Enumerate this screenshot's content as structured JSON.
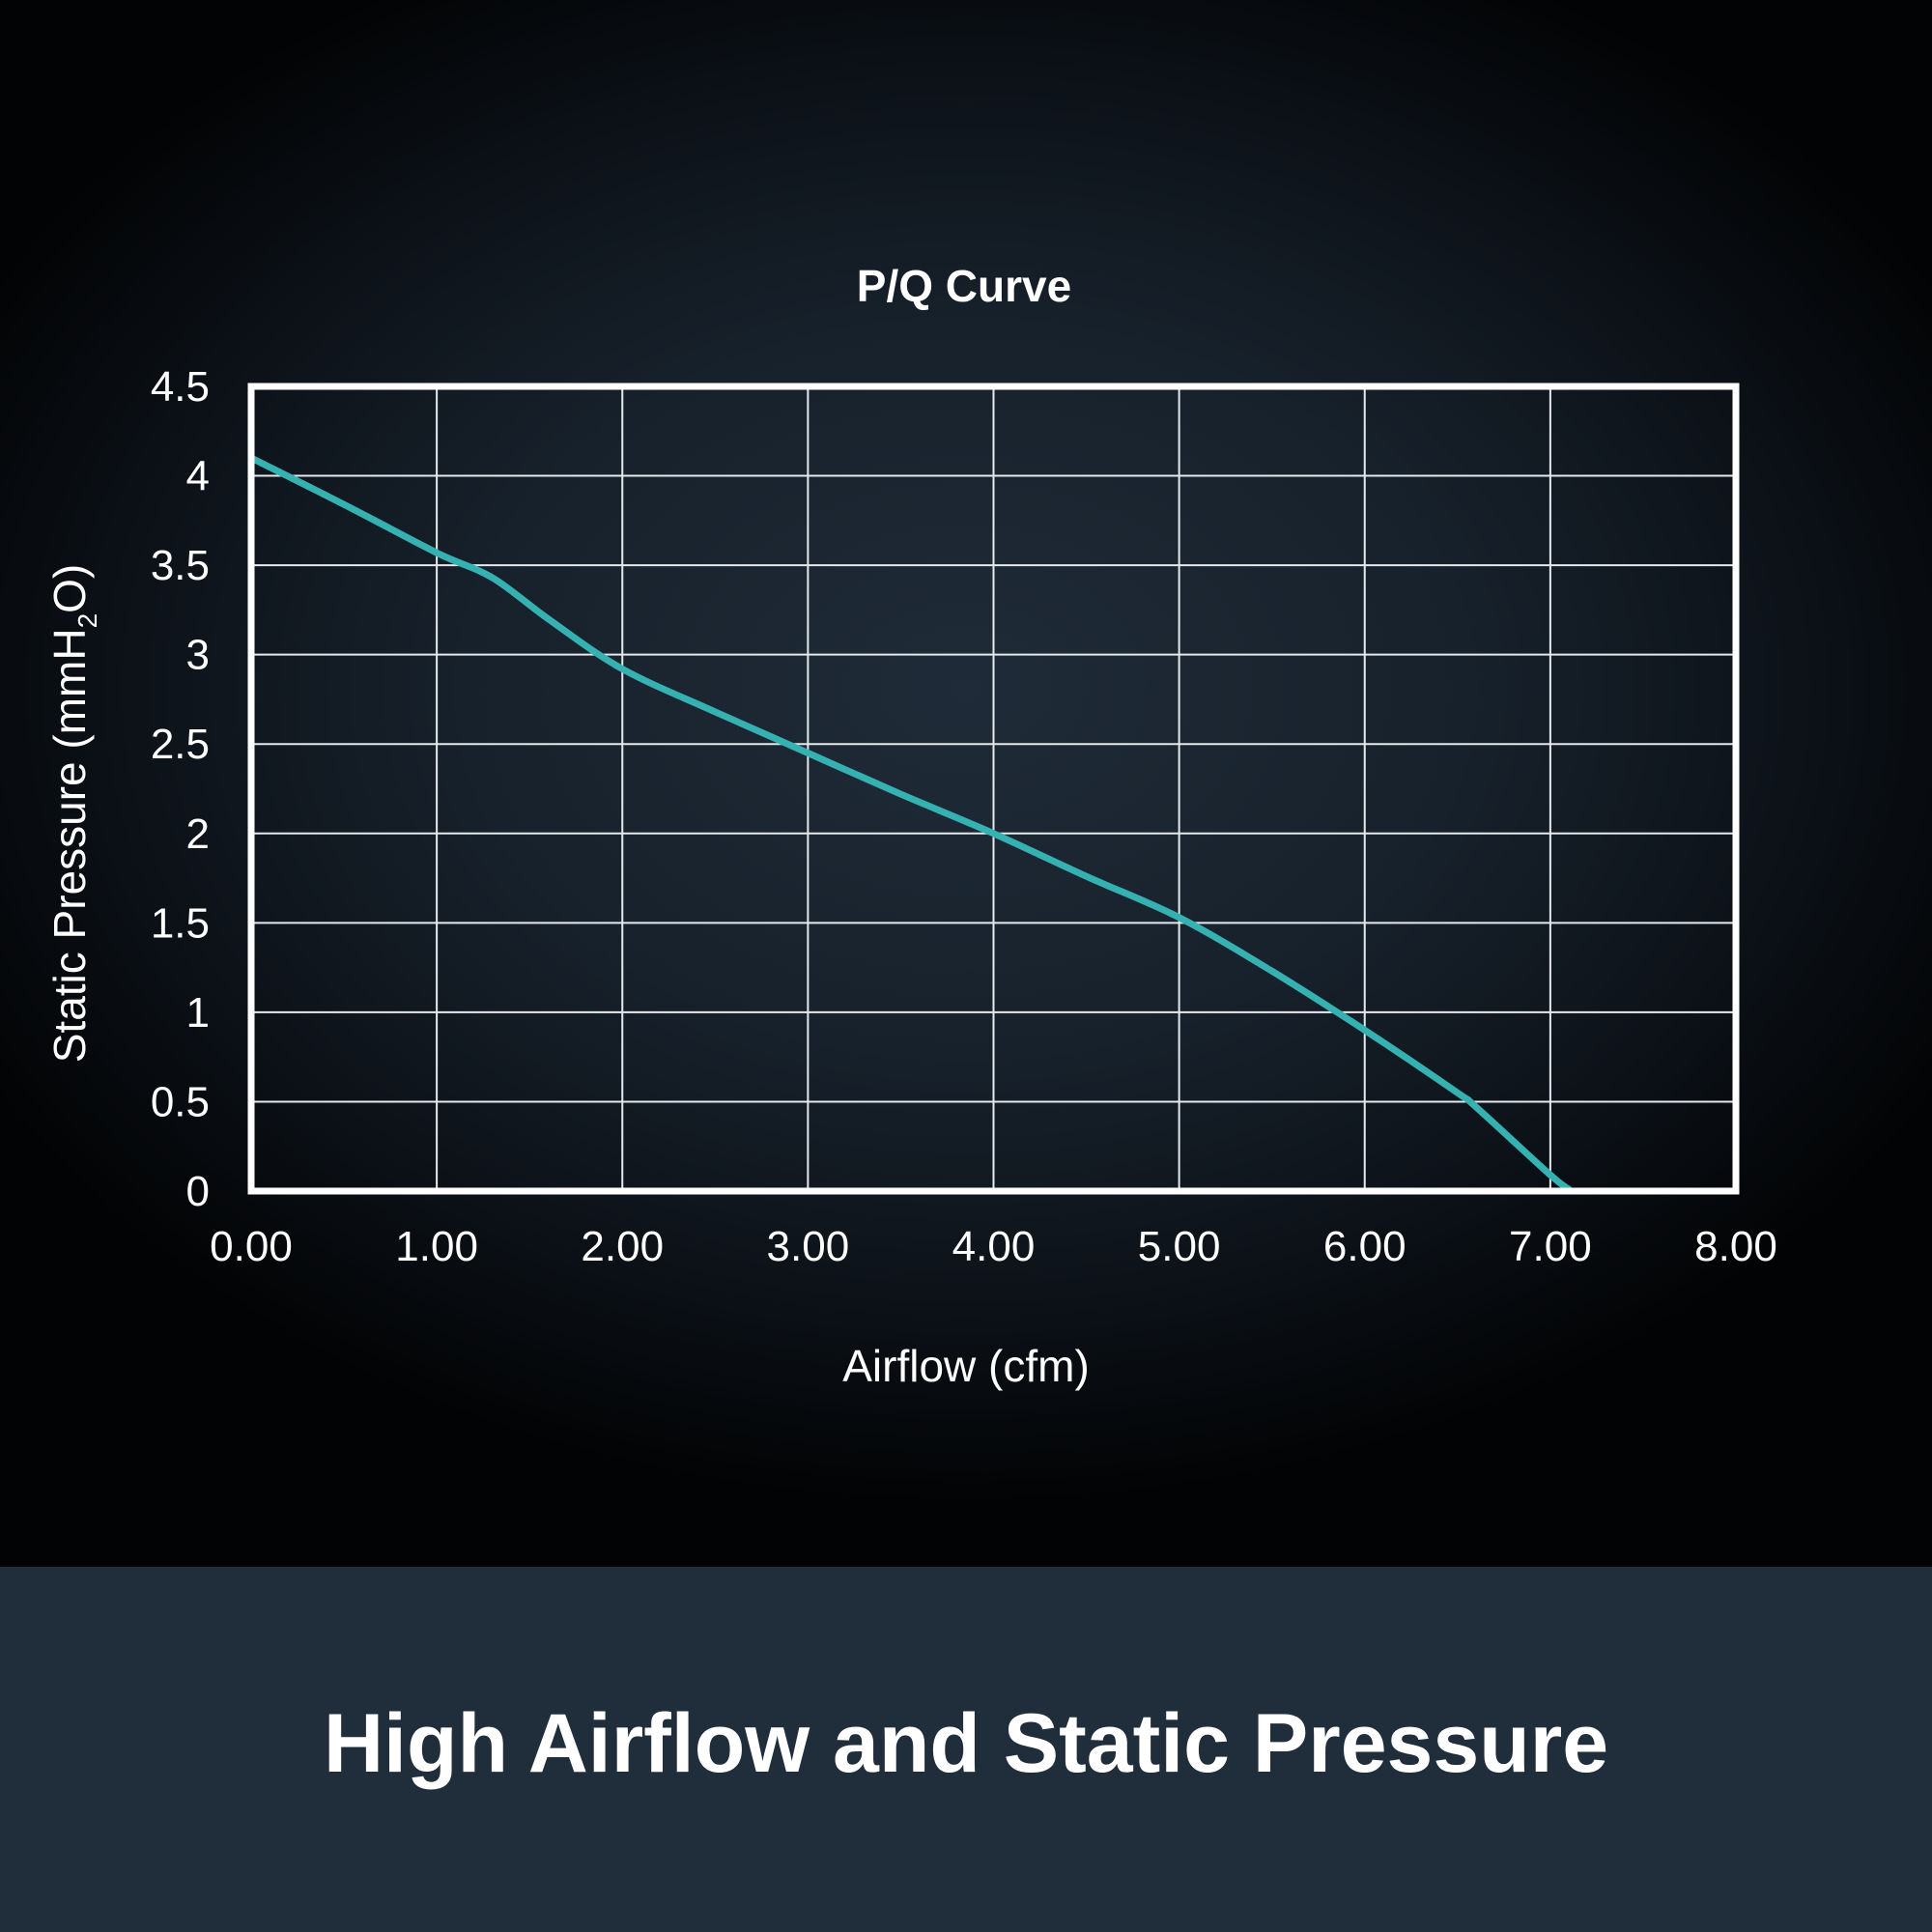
{
  "chart_data": {
    "type": "line",
    "title": "P/Q Curve",
    "xlabel": "Airflow (cfm)",
    "ylabel": {
      "prefix": "Static Pressure (mmH",
      "subscript": "2",
      "suffix": "O)"
    },
    "xlim": [
      0,
      8
    ],
    "ylim": [
      0,
      4.5
    ],
    "x_ticks": [
      "0.00",
      "1.00",
      "2.00",
      "3.00",
      "4.00",
      "5.00",
      "6.00",
      "7.00",
      "8.00"
    ],
    "y_ticks": [
      "0",
      "0.5",
      "1",
      "1.5",
      "2",
      "2.5",
      "3",
      "3.5",
      "4",
      "4.5"
    ],
    "grid": true,
    "line_color": "#35b1b1",
    "series": [
      {
        "x": [
          0.0,
          0.5,
          1.0,
          1.3,
          1.6,
          2.0,
          2.5,
          3.0,
          3.5,
          4.0,
          4.5,
          5.0,
          5.5,
          6.0,
          6.5,
          6.6,
          7.0,
          7.1
        ],
        "y": [
          4.1,
          3.84,
          3.57,
          3.43,
          3.2,
          2.92,
          2.68,
          2.45,
          2.22,
          2.0,
          1.76,
          1.53,
          1.23,
          0.9,
          0.55,
          0.47,
          0.09,
          0.01
        ]
      }
    ]
  },
  "caption": "High Airflow and Static Pressure"
}
